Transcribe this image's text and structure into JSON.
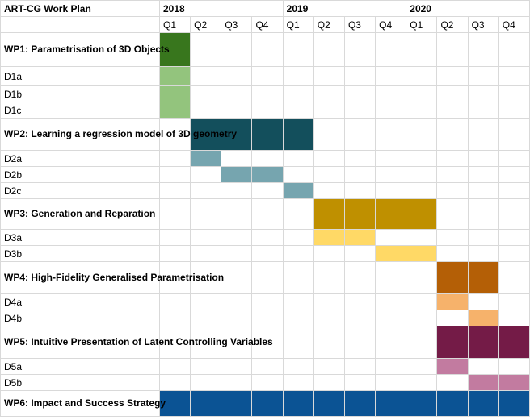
{
  "title": "ART-CG Work Plan",
  "years": [
    "2018",
    "2019",
    "2020"
  ],
  "quarters": [
    "Q1",
    "Q2",
    "Q3",
    "Q4",
    "Q1",
    "Q2",
    "Q3",
    "Q4",
    "Q1",
    "Q2",
    "Q3",
    "Q4"
  ],
  "colors": {
    "gridline": "#d9d9d9",
    "wp1": "#38761d",
    "wp1_deliverable": "#93c47d",
    "wp2": "#134f5c",
    "wp2_deliverable": "#76a5af",
    "wp3": "#bf9000",
    "wp3_deliverable": "#ffd966",
    "wp4": "#b45f06",
    "wp4_deliverable": "#f6b26b",
    "wp5": "#741b47",
    "wp5_deliverable": "#c27ba0",
    "wp6": "#0b5394"
  },
  "rows": [
    {
      "label": "WP1: Parametrisation of 3D Objects",
      "kind": "wp",
      "color": "#38761d",
      "start": 1,
      "end": 1
    },
    {
      "label": "D1a",
      "kind": "deliverable",
      "color": "#93c47d",
      "start": 1,
      "end": 1
    },
    {
      "label": "D1b",
      "kind": "deliverable",
      "color": "#93c47d",
      "start": 1,
      "end": 1
    },
    {
      "label": "D1c",
      "kind": "deliverable",
      "color": "#93c47d",
      "start": 1,
      "end": 1
    },
    {
      "label": "WP2: Learning a regression model of 3D geometry",
      "kind": "wp",
      "color": "#134f5c",
      "start": 2,
      "end": 5
    },
    {
      "label": "D2a",
      "kind": "deliverable",
      "color": "#76a5af",
      "start": 2,
      "end": 2
    },
    {
      "label": "D2b",
      "kind": "deliverable",
      "color": "#76a5af",
      "start": 3,
      "end": 4
    },
    {
      "label": "D2c",
      "kind": "deliverable",
      "color": "#76a5af",
      "start": 5,
      "end": 5
    },
    {
      "label": "WP3: Generation and Reparation",
      "kind": "wp",
      "color": "#bf9000",
      "start": 6,
      "end": 9
    },
    {
      "label": "D3a",
      "kind": "deliverable",
      "color": "#ffd966",
      "start": 6,
      "end": 7
    },
    {
      "label": "D3b",
      "kind": "deliverable",
      "color": "#ffd966",
      "start": 8,
      "end": 9
    },
    {
      "label": "WP4: High-Fidelity Generalised Parametrisation",
      "kind": "wp",
      "color": "#b45f06",
      "start": 10,
      "end": 11
    },
    {
      "label": "D4a",
      "kind": "deliverable",
      "color": "#f6b26b",
      "start": 10,
      "end": 10
    },
    {
      "label": "D4b",
      "kind": "deliverable",
      "color": "#f6b26b",
      "start": 11,
      "end": 11
    },
    {
      "label": "WP5: Intuitive Presentation of Latent Controlling Variables",
      "kind": "wp",
      "color": "#741b47",
      "start": 10,
      "end": 12
    },
    {
      "label": "D5a",
      "kind": "deliverable",
      "color": "#c27ba0",
      "start": 10,
      "end": 10
    },
    {
      "label": "D5b",
      "kind": "deliverable",
      "color": "#c27ba0",
      "start": 11,
      "end": 12
    },
    {
      "label": "WP6: Impact and Success Strategy",
      "kind": "wp",
      "color": "#0b5394",
      "start": 1,
      "end": 12
    }
  ]
}
